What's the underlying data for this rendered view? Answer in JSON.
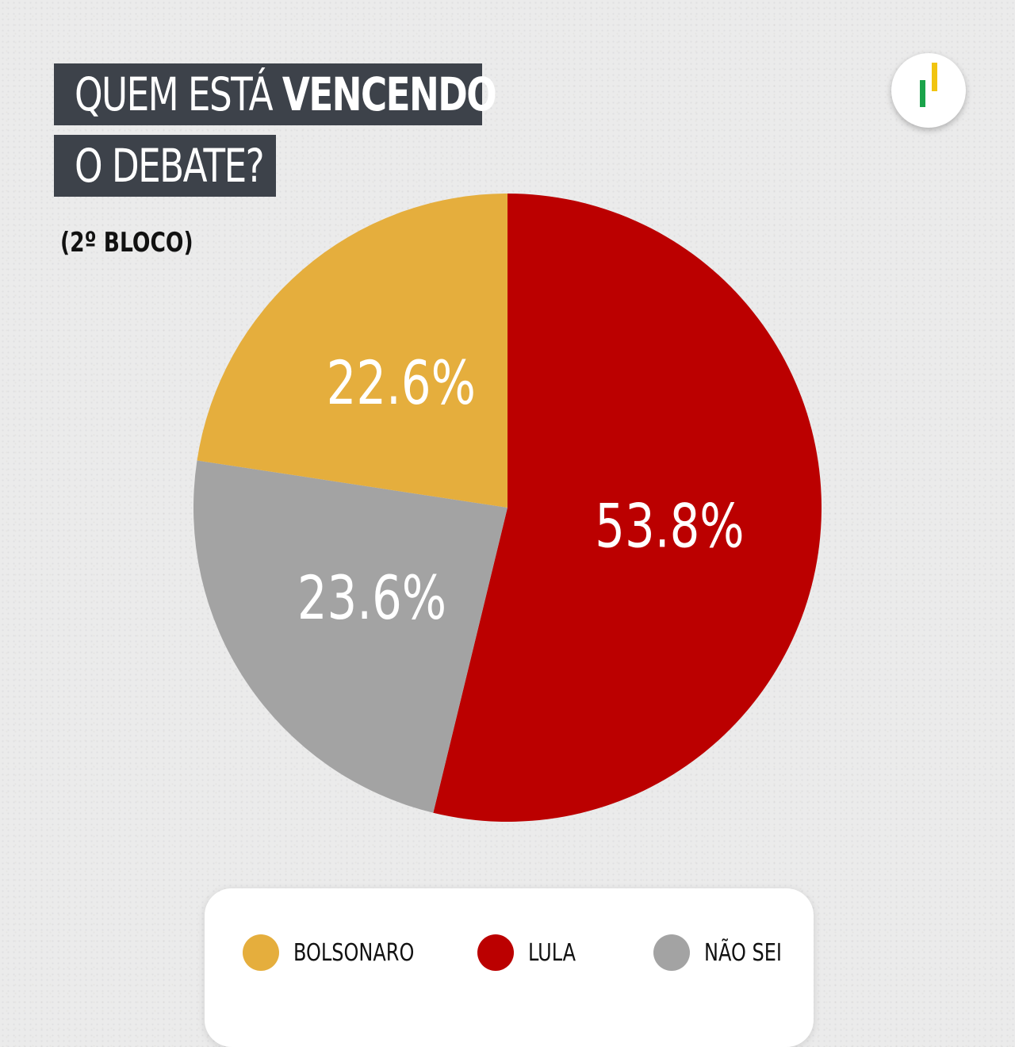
{
  "title": {
    "line1_regular": "QUEM ESTÁ ",
    "line1_bold": "VENCENDO",
    "line2": "O DEBATE?"
  },
  "subtitle": "(2º BLOCO)",
  "chart_data": {
    "type": "pie",
    "slices": [
      {
        "label": "LULA",
        "value": 53.8,
        "display": "53.8%",
        "color": "#bb0000"
      },
      {
        "label": "NÃO SEI",
        "value": 23.6,
        "display": "23.6%",
        "color": "#a3a3a3"
      },
      {
        "label": "BOLSONARO",
        "value": 22.6,
        "display": "22.6%",
        "color": "#e5ae3d"
      }
    ],
    "start": "top, clockwise",
    "legend_position": "bottom"
  },
  "legend": [
    {
      "label": "BOLSONARO",
      "color": "#e5ae3d"
    },
    {
      "label": "LULA",
      "color": "#bb0000"
    },
    {
      "label": "NÃO SEI",
      "color": "#a3a3a3"
    }
  ],
  "logo": {
    "icon": "bar-chart-logo-icon",
    "colors": [
      "#1aa34a",
      "#f1c40f"
    ]
  }
}
